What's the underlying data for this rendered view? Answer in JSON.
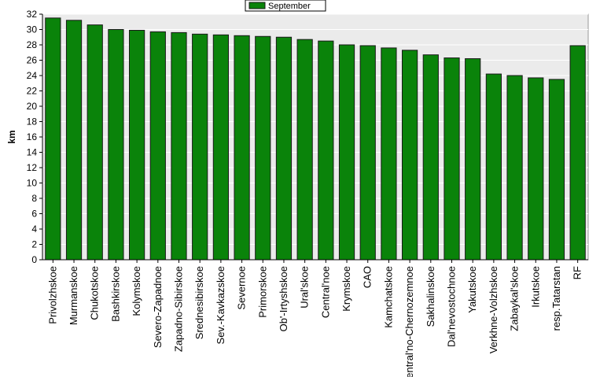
{
  "colors": {
    "bar_fill": "#0a830a",
    "bar_stroke": "#1a1a1a",
    "plot_background": "#ebebeb",
    "gridline": "#ffffff"
  },
  "legend": {
    "label": "September",
    "position": "top-center"
  },
  "chart_data": {
    "type": "bar",
    "title": "",
    "xlabel": "",
    "ylabel": "km",
    "ylim": [
      0,
      32
    ],
    "ytick_step": 2,
    "grid": true,
    "categories": [
      "Privolzhskoe",
      "Murmanskoe",
      "Chukotskoe",
      "Bashkirskoe",
      "Kolymskoe",
      "Severo-Zapadnoe",
      "Zapadno-Sibirskoe",
      "Srednesibirskoe",
      "Sev.-Kavkazskoe",
      "Severnoe",
      "Primorskoe",
      "Ob'-Irtyshskoe",
      "Ural'skoe",
      "Central'noe",
      "Krymskoe",
      "CAO",
      "Kamchatskoe",
      "Central'no-Chernozemnoe",
      "Sakhalinskoe",
      "Dal'nevostochnoe",
      "Yakutskoe",
      "Verkhne-Volzhskoe",
      "Zabaykal'skoe",
      "Irkutskoe",
      "resp.Tatarstan",
      "RF"
    ],
    "series": [
      {
        "name": "September",
        "values": [
          31.5,
          31.2,
          30.6,
          30.0,
          29.9,
          29.7,
          29.6,
          29.4,
          29.3,
          29.2,
          29.1,
          29.0,
          28.7,
          28.5,
          28.0,
          27.9,
          27.6,
          27.3,
          26.7,
          26.3,
          26.2,
          24.2,
          24.0,
          23.7,
          23.5,
          27.9
        ]
      }
    ]
  }
}
